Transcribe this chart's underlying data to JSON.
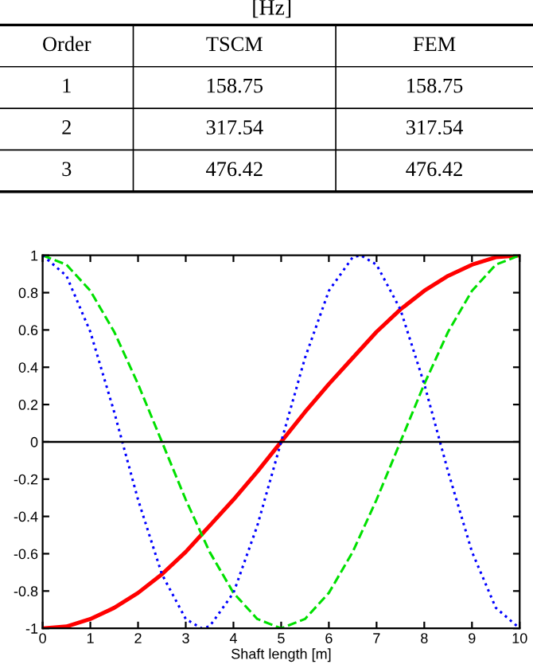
{
  "chart_data": [
    {
      "type": "other",
      "annotations": [
        "[Hz]",
        "Order",
        "TSCM",
        "FEM",
        "1",
        "158.75",
        "158.75",
        "2",
        "317.54",
        "317.54",
        "3",
        "476.42",
        "476.42"
      ]
    },
    {
      "type": "line",
      "xlabel": "Shaft length [m]",
      "xlim": [
        0,
        10
      ],
      "ylim": [
        -1,
        1
      ],
      "xticks": [
        0,
        1,
        2,
        3,
        4,
        5,
        6,
        7,
        8,
        9,
        10
      ],
      "yticks": [
        -1,
        -0.8,
        -0.6,
        -0.4,
        -0.2,
        0,
        0.2,
        0.4,
        0.6,
        0.8,
        1
      ],
      "grid": false,
      "marker": "none",
      "ref_lines": [
        {
          "axis": "y",
          "value": 0,
          "color": "#000000",
          "line_style": "solid"
        }
      ],
      "x": [
        0,
        0.5,
        1,
        1.5,
        2,
        2.5,
        3,
        3.5,
        4,
        4.5,
        5,
        5.5,
        6,
        6.5,
        7,
        7.5,
        8,
        8.5,
        9,
        9.5,
        10
      ],
      "series": [
        {
          "color": "#ff0000",
          "line_style": "solid",
          "values": [
            -1,
            -0.99,
            -0.95,
            -0.89,
            -0.81,
            -0.71,
            -0.59,
            -0.45,
            -0.31,
            -0.16,
            0,
            0.16,
            0.31,
            0.45,
            0.59,
            0.71,
            0.81,
            0.89,
            0.95,
            0.99,
            1
          ]
        },
        {
          "color": "#00e000",
          "line_style": "dashed",
          "values": [
            1,
            0.95,
            0.81,
            0.59,
            0.31,
            0,
            -0.31,
            -0.59,
            -0.81,
            -0.95,
            -1,
            -0.95,
            -0.81,
            -0.59,
            -0.31,
            0,
            0.31,
            0.59,
            0.81,
            0.95,
            1
          ]
        },
        {
          "color": "#0000ff",
          "line_style": "dotted",
          "x": [
            0,
            0.5,
            1,
            1.5,
            2,
            2.5,
            3,
            3.33,
            3.5,
            4,
            4.5,
            5,
            5.5,
            6,
            6.5,
            6.67,
            7,
            7.5,
            8,
            8.5,
            9,
            9.5,
            10
          ],
          "values": [
            1,
            0.89,
            0.59,
            0.16,
            -0.31,
            -0.71,
            -0.95,
            -1,
            -0.99,
            -0.81,
            -0.45,
            0,
            0.45,
            0.81,
            0.99,
            1,
            0.95,
            0.71,
            0.31,
            -0.16,
            -0.59,
            -0.89,
            -1
          ]
        }
      ]
    }
  ]
}
